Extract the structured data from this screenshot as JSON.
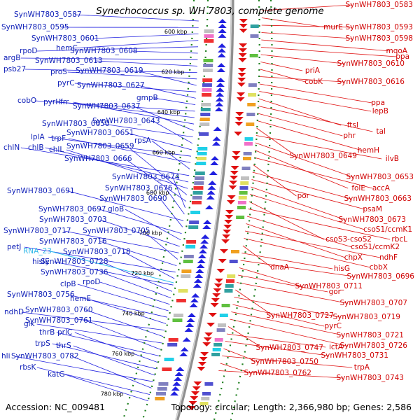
{
  "title": "Synechococcus sp. WH 7803, complete genome",
  "accession": "Accession: NC_009481",
  "summary": "Topology: circular; Length: 2,366,980 bp; Genes: 2,586",
  "colors": {
    "forward": "#2020e0",
    "reverse": "#e01010",
    "rna": "#30c0f0",
    "backbone": "#909090",
    "tick": "#208020"
  },
  "kbp_markers": [
    "600 kbp",
    "620 kbp",
    "640 kbp",
    "660 kbp",
    "680 kbp",
    "700 kbp",
    "720 kbp",
    "740 kbp",
    "760 kbp",
    "780 kbp"
  ],
  "left_labels": [
    "SynWH7803_0587",
    "SynWH7803_0595",
    "SynWH7803_0601",
    "hemC",
    "rpoD",
    "SynWH7803_0608",
    "argB",
    "SynWH7803_0613",
    "psb27",
    "proS",
    "SynWH7803_0619",
    "pyrC",
    "SynWH7803_0627",
    "gmpB",
    "cobO",
    "pyrH",
    "frr",
    "SynWH7803_0637",
    "SynWH7803_0650",
    "SynWH7803_0643",
    "SynWH7803_0651",
    "lplA",
    "trpF",
    "rpsA",
    "chlN",
    "chlB",
    "chlL",
    "SynWH7803_0659",
    "SynWH7803_0666",
    "SynWH7803_0674",
    "SynWH7803_0676",
    "SynWH7803_0691",
    "SynWH7803_0690",
    "SynWH7803_0697",
    "gloB",
    "SynWH7803_0703",
    "SynWH7803_0717",
    "SynWH7803_0705",
    "SynWH7803_0716",
    "petJ",
    "SynWH7803_0718",
    "hisIE",
    "SynWH7803_0728",
    "SynWH7803_0736",
    "rpoD",
    "clpB",
    "SynWH7803_0756",
    "hemE",
    "ndhD",
    "SynWH7803_0760",
    "glk",
    "SynWH7803_0761",
    "thrB",
    "prlC",
    "trpS",
    "thrS",
    "hli",
    "SynWH7803_0782",
    "rbsK",
    "katG"
  ],
  "rna_labels": [
    "RNA_23"
  ],
  "right_labels": [
    "SynWH7803_0583",
    "murE",
    "SynWH7803_0593",
    "SynWH7803_0598",
    "mqoA",
    "ppa",
    "SynWH7803_0610",
    "priA",
    "cobK",
    "SynWH7803_0616",
    "ppa",
    "lepB",
    "ftsI",
    "tal",
    "phr",
    "hemH",
    "SynWH7803_0649",
    "ilvB",
    "SynWH7803_0653",
    "folE",
    "accA",
    "por",
    "SynWH7803_0663",
    "psaM",
    "SynWH7803_0673",
    "csoS1/ccmK1",
    "csoS3-csoS2",
    "rbcL",
    "csoS1/ccmK2",
    "chpX",
    "ndhF",
    "cbbX",
    "dnaA",
    "hisG",
    "SynWH7803_0696",
    "SynWH7803_0711",
    "gor",
    "SynWH7803_0707",
    "SynWH7803_0727",
    "SynWH7803_0719",
    "pyrC",
    "SynWH7803_0721",
    "SynWH7803_0726",
    "SynWH7803_0747",
    "ictA",
    "SynWH7803_0731",
    "SynWH7803_0750",
    "trpA",
    "SynWH7803_0762",
    "SynWH7803_0743"
  ]
}
